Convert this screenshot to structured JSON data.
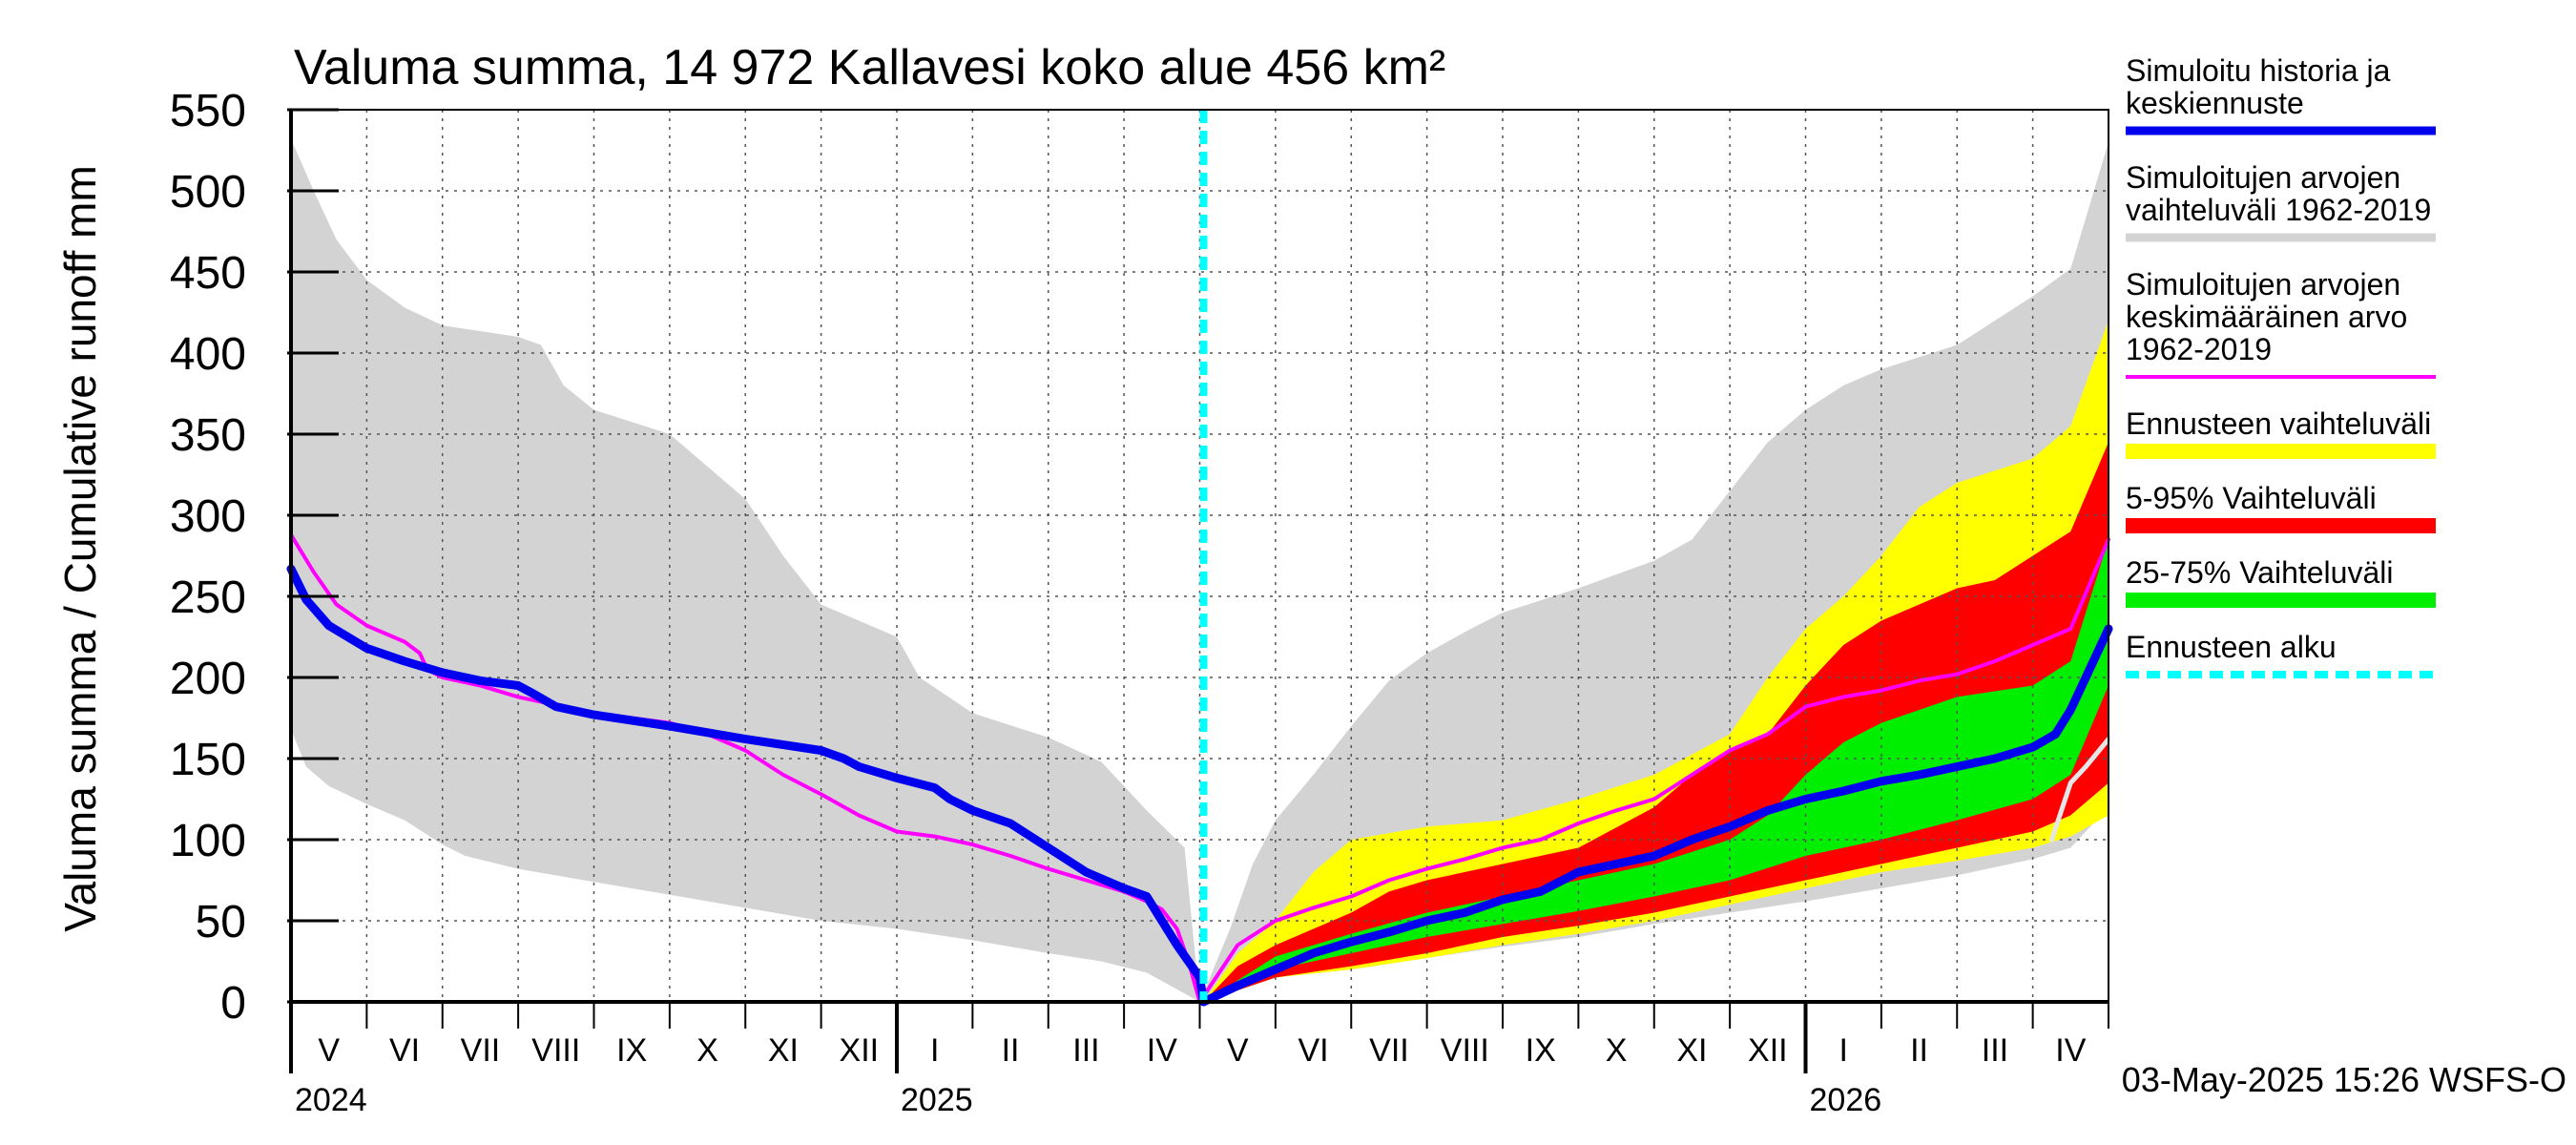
{
  "chart_data": {
    "type": "area",
    "title": "Valuma summa, 14 972 Kallavesi koko alue 456 km²",
    "ylabel": "Valuma summa / Cumulative runoff    mm",
    "ylim": [
      0,
      550
    ],
    "yticks": [
      0,
      50,
      100,
      150,
      200,
      250,
      300,
      350,
      400,
      450,
      500,
      550
    ],
    "ytick_labels": [
      "0",
      "50",
      "100",
      "150",
      "200",
      "250",
      "300",
      "350",
      "400",
      "450",
      "500",
      "550"
    ],
    "x_unit": "months since 2024-05-01",
    "xlim": [
      0,
      24
    ],
    "month_labels": [
      "V",
      "VI",
      "VII",
      "VIII",
      "IX",
      "X",
      "XI",
      "XII",
      "I",
      "II",
      "III",
      "IV",
      "V",
      "VI",
      "VII",
      "VIII",
      "IX",
      "X",
      "XI",
      "XII",
      "I",
      "II",
      "III",
      "IV"
    ],
    "year_labels": [
      {
        "label": "2024",
        "x": 0
      },
      {
        "label": "2025",
        "x": 8
      },
      {
        "label": "2026",
        "x": 20
      }
    ],
    "forecast_start": 12.05,
    "timestamp": "03-May-2025 15:26 WSFS-O",
    "legend": [
      {
        "label": "Simuloitu historia ja keskiennuste",
        "lines": [
          "Simuloitu historia ja",
          "keskiennuste"
        ],
        "color": "#0000ee",
        "style": "thick"
      },
      {
        "label": "Simuloitujen arvojen vaihteluväli 1962-2019",
        "lines": [
          "Simuloitujen arvojen",
          "vaihteluväli 1962-2019"
        ],
        "color": "#d3d3d3",
        "style": "thick"
      },
      {
        "label": "Simuloitujen arvojen keskimääräinen arvo 1962-2019",
        "lines": [
          "Simuloitujen arvojen",
          "keskimääräinen arvo",
          "   1962-2019"
        ],
        "color": "#ff00ff",
        "style": "thin"
      },
      {
        "label": "Ennusteen vaihteluväli",
        "lines": [
          "Ennusteen vaihteluväli"
        ],
        "color": "#ffff00",
        "style": "band"
      },
      {
        "label": "5-95% Vaihteluväli",
        "lines": [
          "5-95% Vaihteluväli"
        ],
        "color": "#ff0000",
        "style": "band"
      },
      {
        "label": "25-75% Vaihteluväli",
        "lines": [
          "25-75% Vaihteluväli"
        ],
        "color": "#00ee00",
        "style": "band"
      },
      {
        "label": "Ennusteen alku",
        "lines": [
          "Ennusteen alku"
        ],
        "color": "#00ffff",
        "style": "dashed"
      }
    ],
    "colors": {
      "hist_range": "#d3d3d3",
      "forecast_range": "#ffff00",
      "p5_95": "#ff0000",
      "p25_75": "#00ee00",
      "median": "#0000ee",
      "mean": "#ff00ff",
      "forecast_start": "#00ffff",
      "grid": "#555555",
      "white_line": "#e6e6e6"
    },
    "series": {
      "hist_upper": [
        [
          0,
          532
        ],
        [
          0.3,
          500
        ],
        [
          0.6,
          470
        ],
        [
          1,
          445
        ],
        [
          1.5,
          428
        ],
        [
          2,
          417
        ],
        [
          3,
          410
        ],
        [
          3.3,
          405
        ],
        [
          3.6,
          380
        ],
        [
          4,
          365
        ],
        [
          5,
          350
        ],
        [
          6,
          310
        ],
        [
          6.5,
          275
        ],
        [
          7,
          245
        ],
        [
          8,
          225
        ],
        [
          8.3,
          200
        ],
        [
          9,
          178
        ],
        [
          10,
          163
        ],
        [
          10.7,
          148
        ],
        [
          11.3,
          118
        ],
        [
          11.8,
          95
        ],
        [
          12,
          0
        ],
        [
          12.4,
          45
        ],
        [
          12.7,
          85
        ],
        [
          13,
          112
        ],
        [
          13.5,
          140
        ],
        [
          14,
          170
        ],
        [
          14.5,
          198
        ],
        [
          15,
          215
        ],
        [
          15.5,
          228
        ],
        [
          16,
          240
        ],
        [
          17,
          255
        ],
        [
          18,
          272
        ],
        [
          18.5,
          285
        ],
        [
          19,
          315
        ],
        [
          19.5,
          345
        ],
        [
          20,
          365
        ],
        [
          20.5,
          380
        ],
        [
          21,
          390
        ],
        [
          22,
          405
        ],
        [
          22.5,
          420
        ],
        [
          23,
          435
        ],
        [
          23.5,
          452
        ],
        [
          24,
          530
        ]
      ],
      "hist_lower": [
        [
          0,
          168
        ],
        [
          0.2,
          145
        ],
        [
          0.5,
          133
        ],
        [
          1,
          122
        ],
        [
          1.5,
          112
        ],
        [
          2,
          97
        ],
        [
          2.3,
          90
        ],
        [
          3,
          82
        ],
        [
          4,
          74
        ],
        [
          5,
          66
        ],
        [
          6,
          58
        ],
        [
          7,
          50
        ],
        [
          8,
          45
        ],
        [
          9,
          38
        ],
        [
          10,
          30
        ],
        [
          10.7,
          25
        ],
        [
          11.3,
          18
        ],
        [
          12,
          0
        ],
        [
          12.5,
          10
        ],
        [
          13,
          15
        ],
        [
          14,
          20
        ],
        [
          15,
          27
        ],
        [
          16,
          34
        ],
        [
          17,
          40
        ],
        [
          18,
          48
        ],
        [
          19,
          55
        ],
        [
          20,
          62
        ],
        [
          21,
          70
        ],
        [
          22,
          78
        ],
        [
          23,
          88
        ],
        [
          23.5,
          95
        ],
        [
          24,
          120
        ]
      ],
      "forecast_upper": [
        [
          12.05,
          0
        ],
        [
          12.5,
          30
        ],
        [
          13,
          50
        ],
        [
          13.5,
          80
        ],
        [
          14,
          100
        ],
        [
          15,
          108
        ],
        [
          16,
          112
        ],
        [
          17,
          125
        ],
        [
          18,
          140
        ],
        [
          19,
          165
        ],
        [
          19.5,
          200
        ],
        [
          20,
          230
        ],
        [
          20.5,
          250
        ],
        [
          21,
          275
        ],
        [
          21.5,
          305
        ],
        [
          22,
          320
        ],
        [
          23,
          335
        ],
        [
          23.5,
          355
        ],
        [
          24,
          420
        ]
      ],
      "forecast_lower": [
        [
          12.05,
          0
        ],
        [
          13,
          15
        ],
        [
          14,
          20
        ],
        [
          15,
          27
        ],
        [
          16,
          35
        ],
        [
          17,
          42
        ],
        [
          18,
          50
        ],
        [
          19,
          60
        ],
        [
          20,
          70
        ],
        [
          21,
          80
        ],
        [
          22,
          87
        ],
        [
          23,
          95
        ],
        [
          23.5,
          102
        ],
        [
          24,
          115
        ]
      ],
      "p95": [
        [
          12.05,
          0
        ],
        [
          12.5,
          22
        ],
        [
          13,
          35
        ],
        [
          13.5,
          45
        ],
        [
          14,
          55
        ],
        [
          14.5,
          68
        ],
        [
          15,
          75
        ],
        [
          16,
          85
        ],
        [
          17,
          95
        ],
        [
          18,
          120
        ],
        [
          18.5,
          140
        ],
        [
          19,
          155
        ],
        [
          19.5,
          165
        ],
        [
          20,
          195
        ],
        [
          20.5,
          220
        ],
        [
          21,
          235
        ],
        [
          21.5,
          245
        ],
        [
          22,
          255
        ],
        [
          22.5,
          260
        ],
        [
          23,
          275
        ],
        [
          23.5,
          290
        ],
        [
          24,
          345
        ]
      ],
      "p5": [
        [
          12.05,
          0
        ],
        [
          13,
          15
        ],
        [
          14,
          22
        ],
        [
          15,
          30
        ],
        [
          16,
          40
        ],
        [
          17,
          47
        ],
        [
          18,
          55
        ],
        [
          19,
          65
        ],
        [
          20,
          75
        ],
        [
          21,
          85
        ],
        [
          22,
          95
        ],
        [
          23,
          105
        ],
        [
          23.5,
          115
        ],
        [
          24,
          135
        ]
      ],
      "p75": [
        [
          12.05,
          0
        ],
        [
          13,
          28
        ],
        [
          14,
          42
        ],
        [
          15,
          55
        ],
        [
          16,
          65
        ],
        [
          17,
          75
        ],
        [
          18,
          85
        ],
        [
          19,
          100
        ],
        [
          19.5,
          115
        ],
        [
          20,
          140
        ],
        [
          20.5,
          160
        ],
        [
          21,
          172
        ],
        [
          21.5,
          180
        ],
        [
          22,
          188
        ],
        [
          23,
          195
        ],
        [
          23.5,
          210
        ],
        [
          24,
          285
        ]
      ],
      "p25": [
        [
          12.05,
          0
        ],
        [
          13,
          20
        ],
        [
          14,
          30
        ],
        [
          15,
          40
        ],
        [
          16,
          48
        ],
        [
          17,
          56
        ],
        [
          18,
          65
        ],
        [
          19,
          75
        ],
        [
          20,
          90
        ],
        [
          21,
          100
        ],
        [
          22,
          112
        ],
        [
          23,
          125
        ],
        [
          23.5,
          140
        ],
        [
          24,
          195
        ]
      ],
      "median": [
        [
          0,
          267
        ],
        [
          0.2,
          248
        ],
        [
          0.5,
          232
        ],
        [
          1,
          218
        ],
        [
          1.5,
          210
        ],
        [
          2,
          203
        ],
        [
          2.5,
          198
        ],
        [
          3,
          195
        ],
        [
          3.2,
          190
        ],
        [
          3.5,
          182
        ],
        [
          4,
          177
        ],
        [
          5,
          170
        ],
        [
          6,
          162
        ],
        [
          7,
          155
        ],
        [
          7.3,
          150
        ],
        [
          7.5,
          145
        ],
        [
          8,
          138
        ],
        [
          8.5,
          132
        ],
        [
          8.7,
          125
        ],
        [
          9,
          118
        ],
        [
          9.5,
          110
        ],
        [
          10,
          95
        ],
        [
          10.5,
          80
        ],
        [
          11,
          70
        ],
        [
          11.3,
          65
        ],
        [
          11.5,
          50
        ],
        [
          11.7,
          35
        ],
        [
          12,
          15
        ],
        [
          12.05,
          0
        ],
        [
          12.5,
          10
        ],
        [
          13,
          20
        ],
        [
          13.5,
          30
        ],
        [
          14,
          37
        ],
        [
          14.5,
          43
        ],
        [
          15,
          50
        ],
        [
          15.5,
          55
        ],
        [
          16,
          63
        ],
        [
          16.5,
          68
        ],
        [
          17,
          80
        ],
        [
          17.5,
          85
        ],
        [
          18,
          90
        ],
        [
          18.5,
          100
        ],
        [
          19,
          108
        ],
        [
          19.5,
          118
        ],
        [
          20,
          125
        ],
        [
          20.5,
          130
        ],
        [
          21,
          136
        ],
        [
          21.5,
          140
        ],
        [
          22,
          145
        ],
        [
          22.5,
          150
        ],
        [
          23,
          157
        ],
        [
          23.3,
          165
        ],
        [
          23.5,
          180
        ],
        [
          23.7,
          200
        ],
        [
          24,
          230
        ]
      ],
      "mean": [
        [
          0,
          288
        ],
        [
          0.3,
          265
        ],
        [
          0.6,
          245
        ],
        [
          1,
          232
        ],
        [
          1.5,
          222
        ],
        [
          1.7,
          215
        ],
        [
          1.8,
          205
        ],
        [
          2,
          200
        ],
        [
          2.5,
          195
        ],
        [
          3,
          188
        ],
        [
          3.5,
          183
        ],
        [
          4,
          178
        ],
        [
          5,
          172
        ],
        [
          5.5,
          165
        ],
        [
          6,
          155
        ],
        [
          6.5,
          140
        ],
        [
          7,
          128
        ],
        [
          7.5,
          115
        ],
        [
          8,
          105
        ],
        [
          8.5,
          102
        ],
        [
          9,
          97
        ],
        [
          9.5,
          90
        ],
        [
          10,
          82
        ],
        [
          10.5,
          75
        ],
        [
          11,
          68
        ],
        [
          11.3,
          62
        ],
        [
          11.5,
          57
        ],
        [
          11.7,
          45
        ],
        [
          11.85,
          25
        ],
        [
          12,
          0
        ],
        [
          12.5,
          35
        ],
        [
          13,
          50
        ],
        [
          13.5,
          58
        ],
        [
          14,
          65
        ],
        [
          14.5,
          75
        ],
        [
          15,
          82
        ],
        [
          15.5,
          88
        ],
        [
          16,
          95
        ],
        [
          16.5,
          100
        ],
        [
          17,
          110
        ],
        [
          17.5,
          118
        ],
        [
          18,
          125
        ],
        [
          18.5,
          140
        ],
        [
          19,
          155
        ],
        [
          19.5,
          165
        ],
        [
          20,
          182
        ],
        [
          20.5,
          188
        ],
        [
          21,
          192
        ],
        [
          21.5,
          198
        ],
        [
          22,
          202
        ],
        [
          22.5,
          210
        ],
        [
          23,
          220
        ],
        [
          23.5,
          230
        ],
        [
          24,
          285
        ]
      ],
      "white_line": [
        [
          23.25,
          100
        ],
        [
          23.5,
          135
        ],
        [
          23.7,
          145
        ],
        [
          24,
          162
        ]
      ]
    }
  }
}
